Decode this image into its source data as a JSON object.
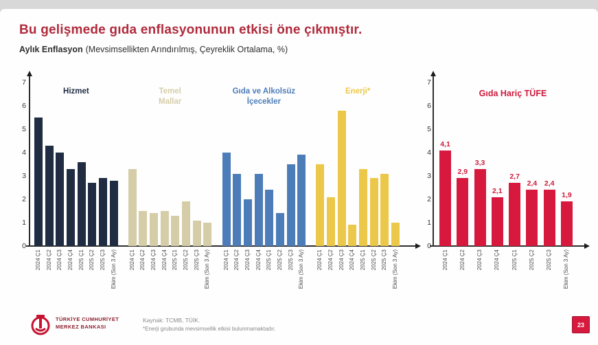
{
  "slide": {
    "title": "Bu gelişmede gıda enflasyonunun etkisi öne çıkmıştır.",
    "subtitle_bold": "Aylık Enflasyon",
    "subtitle_rest": "(Mevsimsellikten Arındırılmış, Çeyreklik Ortalama, %)"
  },
  "colors": {
    "title_red": "#b02a3c",
    "bar_red": "#d6193d",
    "navy": "#1f2c42",
    "beige": "#d5cda8",
    "blue": "#4d7db8",
    "yellow": "#ecc84a",
    "axis": "#2e2e2e"
  },
  "chart_data": [
    {
      "type": "bar",
      "title": "Aylık Enflasyon (Mevsimsellikten Arındırılmış, Çeyreklik Ortalama, %)",
      "categories": [
        "2024 Ç1",
        "2024 Ç2",
        "2024 Ç3",
        "2024 Ç4",
        "2025 Ç1",
        "2025 Ç2",
        "2025 Ç3",
        "Ekim (Son 3 Ay)"
      ],
      "ylim": [
        0,
        7
      ],
      "yticks": [
        0,
        1,
        2,
        3,
        4,
        5,
        6,
        7
      ],
      "grid": false,
      "legend_position": "above each group",
      "series": [
        {
          "name": "Hizmet",
          "color": "#1f2c42",
          "values": [
            5.5,
            4.3,
            4.0,
            3.3,
            3.6,
            2.7,
            2.9,
            2.8
          ]
        },
        {
          "name": "Temel Mallar",
          "color": "#d5cda8",
          "values": [
            3.3,
            1.5,
            1.4,
            1.5,
            1.3,
            1.9,
            1.1,
            1.0
          ]
        },
        {
          "name": "Gıda ve Alkolsüz İçecekler",
          "color": "#4d7db8",
          "values": [
            4.0,
            3.1,
            2.0,
            3.1,
            2.4,
            1.4,
            3.5,
            3.9
          ]
        },
        {
          "name": "Enerji*",
          "color": "#ecc84a",
          "values": [
            3.5,
            2.1,
            5.8,
            0.9,
            3.3,
            2.9,
            3.1,
            1.0
          ]
        }
      ]
    },
    {
      "type": "bar",
      "title": "Gıda Hariç TÜFE",
      "categories": [
        "2024 Ç1",
        "2024 Ç2",
        "2024 Ç3",
        "2024 Ç4",
        "2025 Ç1",
        "2025 Ç2",
        "2025 Ç3",
        "Ekim (Son 3 Ay)"
      ],
      "ylim": [
        0,
        7
      ],
      "yticks": [
        0,
        1,
        2,
        3,
        4,
        5,
        6,
        7
      ],
      "grid": false,
      "color": "#d6193d",
      "values": [
        4.1,
        2.9,
        3.3,
        2.1,
        2.7,
        2.4,
        2.4,
        1.9
      ],
      "labels": [
        "4,1",
        "2,9",
        "3,3",
        "2,1",
        "2,7",
        "2,4",
        "2,4",
        "1,9"
      ]
    }
  ],
  "footer": {
    "logo_line1": "TÜRKİYE CUMHURİYET",
    "logo_line2": "MERKEZ BANKASI",
    "source": "Kaynak: TCMB, TÜİK.",
    "footnote": "*Enerji grubunda mevsimsellik etkisi bulunmamaktadır.",
    "page_number": "23"
  }
}
